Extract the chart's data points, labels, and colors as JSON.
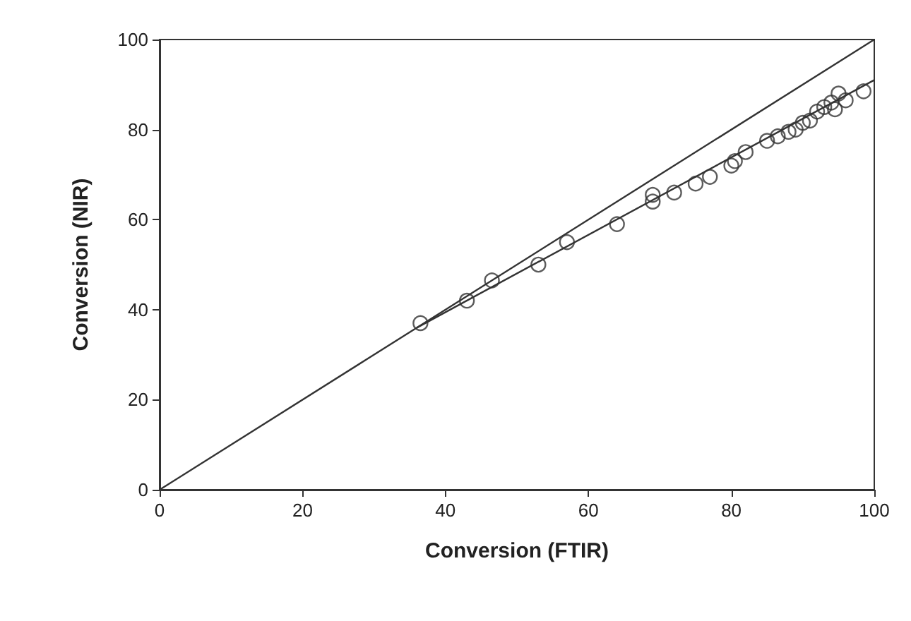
{
  "chart_data": {
    "type": "scatter",
    "xlabel": "Conversion (FTIR)",
    "ylabel": "Conversion (NIR)",
    "xlim": [
      0,
      100
    ],
    "ylim": [
      0,
      100
    ],
    "xticks": [
      0,
      20,
      40,
      60,
      80,
      100
    ],
    "yticks": [
      0,
      20,
      40,
      60,
      80,
      100
    ],
    "grid": false,
    "series": [
      {
        "color": "#333333",
        "marker": "circle",
        "x": [
          36.5,
          43,
          46.5,
          53,
          57,
          64,
          69,
          69,
          72,
          75,
          77,
          80,
          80.5,
          82,
          85,
          86.5,
          88,
          89,
          90,
          91,
          92,
          93,
          94,
          94.5,
          95,
          96,
          98.5
        ],
        "values": [
          37,
          42,
          46.5,
          50,
          55,
          59,
          64,
          65.5,
          66,
          68,
          69.5,
          72,
          73,
          75,
          77.5,
          78.5,
          79.5,
          80,
          81.5,
          82,
          84,
          85,
          86,
          84.5,
          88,
          86.5,
          88.5
        ]
      },
      {
        "type": "line",
        "color": "#333333",
        "marker": "none",
        "x": [
          0,
          100
        ],
        "values": [
          0,
          100
        ]
      },
      {
        "type": "line",
        "color": "#333333",
        "marker": "none",
        "x": [
          36,
          100
        ],
        "values": [
          36,
          91
        ]
      }
    ]
  }
}
